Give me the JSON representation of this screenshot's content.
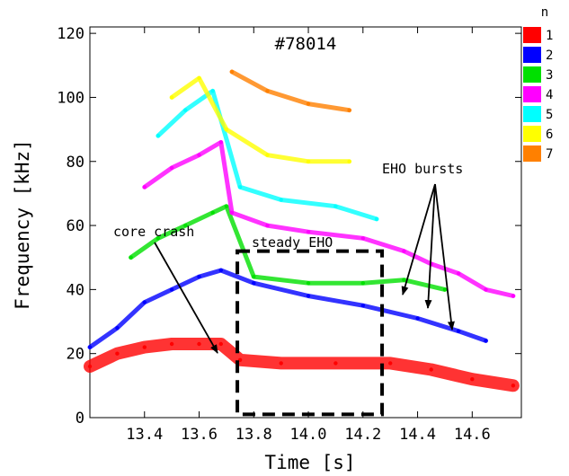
{
  "chart_data": {
    "type": "scatter",
    "title": "#78014",
    "xlabel": "Time [s]",
    "ylabel": "Frequency [kHz]",
    "xlim": [
      13.2,
      14.78
    ],
    "ylim": [
      0,
      122
    ],
    "xticks": [
      13.4,
      13.6,
      13.8,
      14.0,
      14.2,
      14.4,
      14.6
    ],
    "xtick_labels": [
      "13.4",
      "13.6",
      "13.8",
      "14.0",
      "14.2",
      "14.4",
      "14.6"
    ],
    "yticks": [
      0,
      20,
      40,
      60,
      80,
      100,
      120
    ],
    "ytick_labels": [
      "0",
      "20",
      "40",
      "60",
      "80",
      "100",
      "120"
    ],
    "grid": false,
    "legend_title": "n",
    "legend_position": "right",
    "series": [
      {
        "name": "1",
        "color": "#ff0000",
        "points": [
          [
            13.2,
            16
          ],
          [
            13.3,
            20
          ],
          [
            13.4,
            22
          ],
          [
            13.5,
            23
          ],
          [
            13.6,
            23
          ],
          [
            13.68,
            23
          ],
          [
            13.75,
            18
          ],
          [
            13.9,
            17
          ],
          [
            14.1,
            17
          ],
          [
            14.3,
            17
          ],
          [
            14.45,
            15
          ],
          [
            14.6,
            12
          ],
          [
            14.75,
            10
          ]
        ]
      },
      {
        "name": "2",
        "color": "#0000ff",
        "points": [
          [
            13.2,
            22
          ],
          [
            13.3,
            28
          ],
          [
            13.4,
            36
          ],
          [
            13.5,
            40
          ],
          [
            13.6,
            44
          ],
          [
            13.68,
            46
          ],
          [
            13.8,
            42
          ],
          [
            14.0,
            38
          ],
          [
            14.2,
            35
          ],
          [
            14.4,
            31
          ],
          [
            14.55,
            27
          ],
          [
            14.65,
            24
          ]
        ]
      },
      {
        "name": "3",
        "color": "#00e000",
        "points": [
          [
            13.35,
            50
          ],
          [
            13.45,
            56
          ],
          [
            13.55,
            60
          ],
          [
            13.65,
            64
          ],
          [
            13.7,
            66
          ],
          [
            13.8,
            44
          ],
          [
            14.0,
            42
          ],
          [
            14.2,
            42
          ],
          [
            14.35,
            43
          ],
          [
            14.5,
            40
          ]
        ]
      },
      {
        "name": "4",
        "color": "#ff00ff",
        "points": [
          [
            13.4,
            72
          ],
          [
            13.5,
            78
          ],
          [
            13.6,
            82
          ],
          [
            13.68,
            86
          ],
          [
            13.72,
            64
          ],
          [
            13.85,
            60
          ],
          [
            14.0,
            58
          ],
          [
            14.2,
            56
          ],
          [
            14.35,
            52
          ],
          [
            14.45,
            48
          ],
          [
            14.55,
            45
          ],
          [
            14.65,
            40
          ],
          [
            14.75,
            38
          ]
        ]
      },
      {
        "name": "5",
        "color": "#00ffff",
        "points": [
          [
            13.45,
            88
          ],
          [
            13.55,
            96
          ],
          [
            13.65,
            102
          ],
          [
            13.75,
            72
          ],
          [
            13.9,
            68
          ],
          [
            14.1,
            66
          ],
          [
            14.25,
            62
          ]
        ]
      },
      {
        "name": "6",
        "color": "#ffff00",
        "points": [
          [
            13.5,
            100
          ],
          [
            13.6,
            106
          ],
          [
            13.7,
            90
          ],
          [
            13.85,
            82
          ],
          [
            14.0,
            80
          ],
          [
            14.15,
            80
          ]
        ]
      },
      {
        "name": "7",
        "color": "#ff8000",
        "points": [
          [
            13.72,
            108
          ],
          [
            13.85,
            102
          ],
          [
            14.0,
            98
          ],
          [
            14.15,
            96
          ]
        ]
      }
    ],
    "annotations": [
      {
        "text": "core crash",
        "x": 13.33,
        "y": 57
      },
      {
        "text": "steady EHO",
        "x": 13.93,
        "y": 55
      },
      {
        "text": "EHO bursts",
        "x": 14.49,
        "y": 77
      }
    ],
    "box": {
      "x0": 13.74,
      "x1": 14.27,
      "y0": 1,
      "y1": 52
    }
  }
}
